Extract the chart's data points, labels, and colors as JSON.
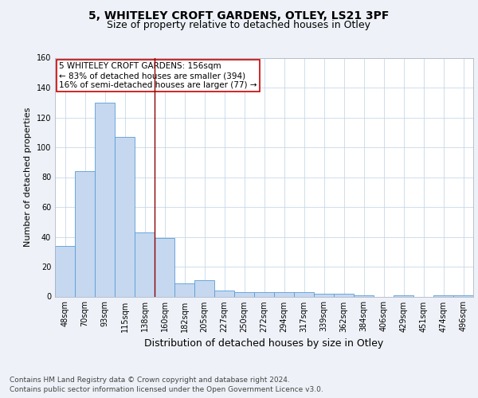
{
  "title": "5, WHITELEY CROFT GARDENS, OTLEY, LS21 3PF",
  "subtitle": "Size of property relative to detached houses in Otley",
  "xlabel": "Distribution of detached houses by size in Otley",
  "ylabel": "Number of detached properties",
  "categories": [
    "48sqm",
    "70sqm",
    "93sqm",
    "115sqm",
    "138sqm",
    "160sqm",
    "182sqm",
    "205sqm",
    "227sqm",
    "250sqm",
    "272sqm",
    "294sqm",
    "317sqm",
    "339sqm",
    "362sqm",
    "384sqm",
    "406sqm",
    "429sqm",
    "451sqm",
    "474sqm",
    "496sqm"
  ],
  "values": [
    34,
    84,
    130,
    107,
    43,
    39,
    9,
    11,
    4,
    3,
    3,
    3,
    3,
    2,
    2,
    1,
    0,
    1,
    0,
    1,
    1
  ],
  "bar_color": "#c5d8f0",
  "bar_edge_color": "#5b9bd5",
  "property_line_color": "#8b0000",
  "property_line_index": 5,
  "annotation_line1": "5 WHITELEY CROFT GARDENS: 156sqm",
  "annotation_line2": "← 83% of detached houses are smaller (394)",
  "annotation_line3": "16% of semi-detached houses are larger (77) →",
  "annotation_box_color": "#ffffff",
  "annotation_box_edge": "#cc0000",
  "ylim": [
    0,
    160
  ],
  "footnote1": "Contains HM Land Registry data © Crown copyright and database right 2024.",
  "footnote2": "Contains public sector information licensed under the Open Government Licence v3.0.",
  "background_color": "#eef2f8",
  "plot_background": "#ffffff",
  "grid_color": "#c8d8e8",
  "title_fontsize": 10,
  "subtitle_fontsize": 9,
  "xlabel_fontsize": 9,
  "ylabel_fontsize": 8,
  "tick_fontsize": 7,
  "annot_fontsize": 7.5,
  "footnote_fontsize": 6.5
}
